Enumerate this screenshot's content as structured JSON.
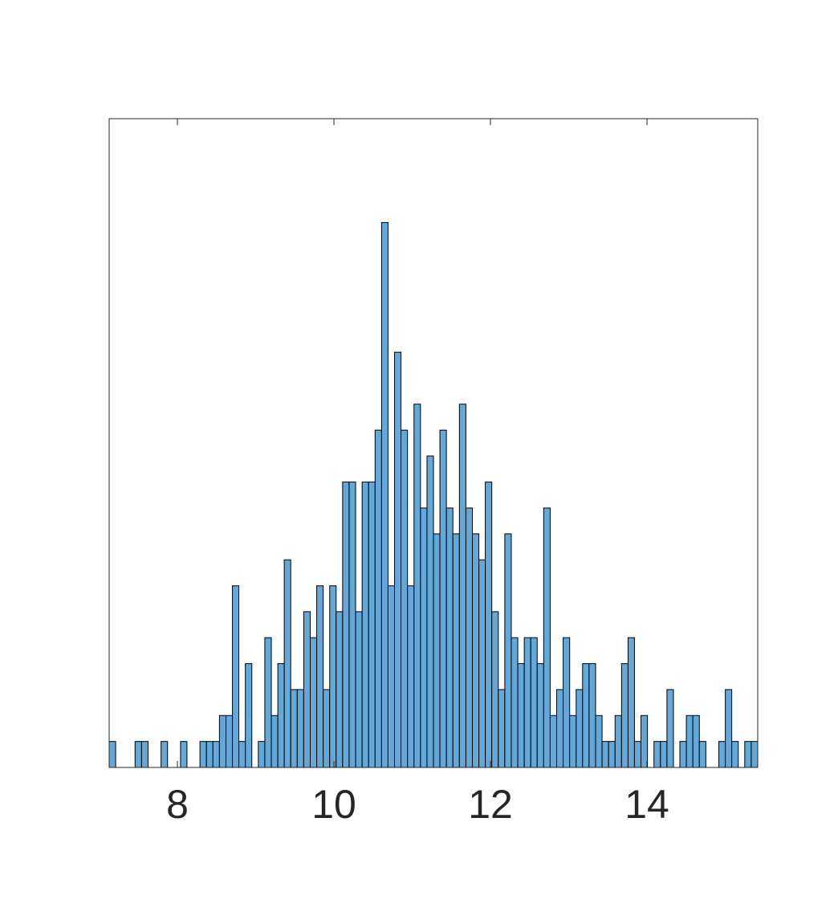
{
  "chart_data": {
    "type": "histogram",
    "bins": [
      7.128,
      7.211,
      7.294,
      7.377,
      7.459,
      7.542,
      7.625,
      7.708,
      7.791,
      7.874,
      7.957,
      8.04,
      8.122,
      8.205,
      8.288,
      8.371,
      8.454,
      8.537,
      8.62,
      8.703,
      8.785,
      8.868,
      8.951,
      9.034,
      9.117,
      9.2,
      9.283,
      9.365,
      9.448,
      9.531,
      9.614,
      9.697,
      9.78,
      9.863,
      9.946,
      10.028,
      10.111,
      10.194,
      10.277,
      10.36,
      10.443,
      10.526,
      10.609,
      10.691,
      10.774,
      10.857,
      10.94,
      11.023,
      11.106,
      11.189,
      11.272,
      11.354,
      11.437,
      11.52,
      11.603,
      11.686,
      11.769,
      11.852,
      11.934,
      12.017,
      12.1,
      12.183,
      12.266,
      12.349,
      12.432,
      12.515,
      12.597,
      12.68,
      12.763,
      12.846,
      12.929,
      13.012,
      13.095,
      13.177,
      13.26,
      13.343,
      13.426,
      13.509,
      13.592,
      13.675,
      13.758,
      13.84,
      13.923,
      14.006,
      14.089,
      14.172,
      14.255,
      14.338,
      14.42,
      14.503,
      14.586,
      14.669,
      14.752,
      14.835,
      14.918,
      15.001,
      15.083,
      15.166,
      15.249,
      15.332,
      15.415
    ],
    "values": [
      1,
      0,
      0,
      0,
      1,
      1,
      0,
      0,
      1,
      0,
      0,
      1,
      0,
      0,
      1,
      1,
      1,
      2,
      2,
      7,
      1,
      4,
      0,
      1,
      5,
      2,
      4,
      8,
      3,
      3,
      6,
      5,
      7,
      3,
      7,
      6,
      11,
      11,
      6,
      11,
      11,
      13,
      21,
      7,
      16,
      13,
      7,
      14,
      10,
      12,
      9,
      13,
      10,
      9,
      14,
      10,
      9,
      8,
      11,
      6,
      3,
      9,
      5,
      4,
      5,
      5,
      4,
      10,
      2,
      3,
      5,
      2,
      3,
      4,
      4,
      2,
      1,
      1,
      2,
      4,
      5,
      1,
      2,
      0,
      1,
      1,
      3,
      0,
      1,
      2,
      2,
      1,
      0,
      0,
      1,
      3,
      1,
      0,
      1,
      1
    ],
    "color": "#62a8d8",
    "edgecolor": "#000000",
    "xlim": [
      7.128,
      15.415
    ],
    "xticks": [
      8,
      10,
      12,
      14
    ],
    "ylim": [
      0,
      25
    ]
  }
}
